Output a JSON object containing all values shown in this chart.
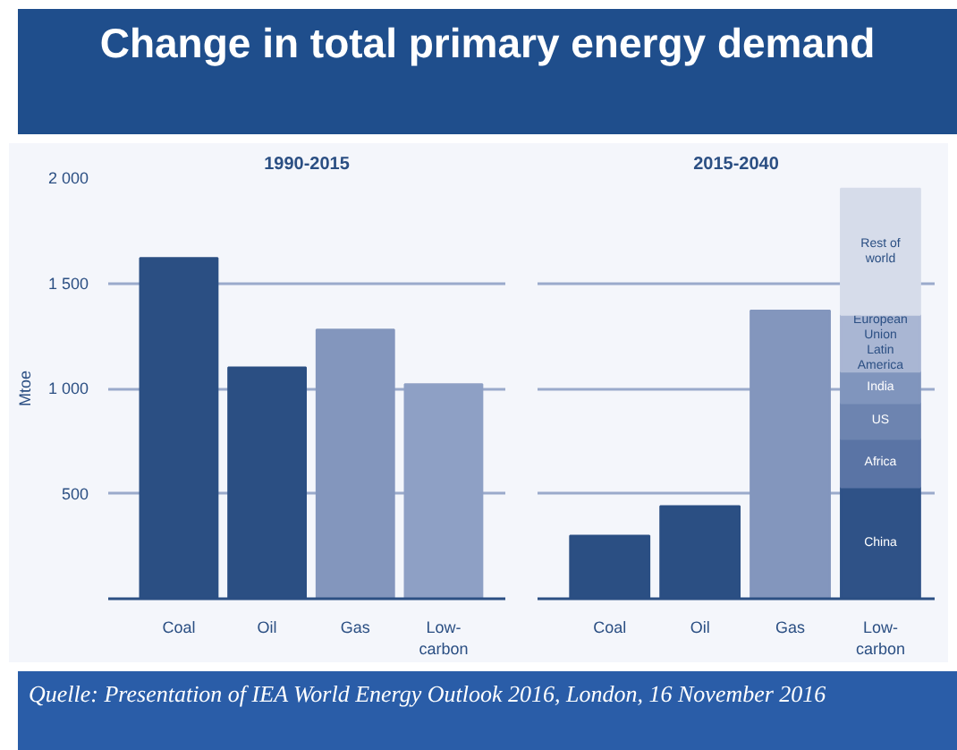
{
  "chart_data": [
    {
      "type": "bar",
      "title": "Change in total primary energy demand",
      "subtitle": "1990-2015",
      "ylabel": "Mtoe",
      "categories": [
        "Coal",
        "Oil",
        "Gas",
        "Low-carbon"
      ],
      "values": [
        1620,
        1100,
        1280,
        1020
      ],
      "colors": [
        "#2b4f83",
        "#2b4f83",
        "#8396bd",
        "#8ea0c5"
      ],
      "ylim": [
        0,
        2000
      ],
      "yticks": [
        {
          "value": 500,
          "label": "500"
        },
        {
          "value": 1000,
          "label": "1 000"
        },
        {
          "value": 1500,
          "label": "1 500"
        },
        {
          "value": 2000,
          "label": "2 000"
        }
      ],
      "grid": "y",
      "annotations": [
        "Quelle: Presentation of IEA World Energy Outlook 2016, London, 16 November 2016"
      ]
    },
    {
      "type": "bar",
      "subtitle": "2015-2040",
      "stacked": true,
      "categories": [
        "Coal",
        "Oil",
        "Gas",
        "Low-carbon"
      ],
      "series": [
        {
          "values": [
            300,
            440,
            1370,
            null
          ],
          "colors": [
            "#2b4f83",
            "#2b4f83",
            "#8396bd",
            "#2f5287"
          ]
        },
        {
          "name": "China",
          "color": "#2f5287",
          "values": [
            null,
            null,
            null,
            530
          ]
        },
        {
          "name": "Africa",
          "color": "#5a74a5",
          "values": [
            null,
            null,
            null,
            230
          ]
        },
        {
          "name": "US",
          "color": "#6d84b0",
          "values": [
            null,
            null,
            null,
            170
          ]
        },
        {
          "name": "India",
          "color": "#8095bd",
          "values": [
            null,
            null,
            null,
            150
          ]
        },
        {
          "name": "European Union Latin America",
          "color": "#a9b6d3",
          "values": [
            null,
            null,
            null,
            270
          ]
        },
        {
          "name": "Rest of world",
          "color": "#d6dcea",
          "values": [
            null,
            null,
            null,
            600
          ]
        }
      ],
      "ylim": [
        0,
        2000
      ],
      "yticks": [
        {
          "value": 500,
          "label": "500"
        },
        {
          "value": 1000,
          "label": "1 000"
        },
        {
          "value": 1500,
          "label": "1 500"
        },
        {
          "value": 2000,
          "label": "2 000"
        }
      ],
      "grid": "y",
      "tick_labels": "x"
    }
  ]
}
